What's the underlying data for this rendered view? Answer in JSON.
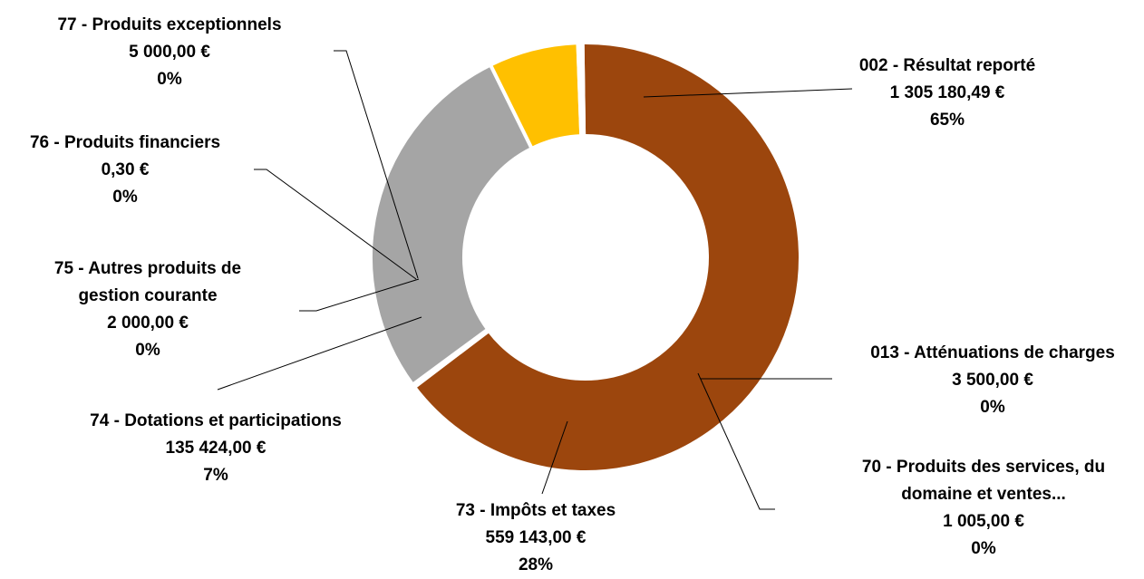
{
  "chart_data": {
    "type": "pie",
    "variant": "donut",
    "legend": "none",
    "slices": [
      {
        "name": "002 - Résultat reporté",
        "value": 1305180.49,
        "value_label": "1 305 180,49 €",
        "percent_label": "65%",
        "color": "#9C460D"
      },
      {
        "name": "013 - Atténuations de charges",
        "value": 3500.0,
        "value_label": "3 500,00 €",
        "percent_label": "0%",
        "color": "#9C460D"
      },
      {
        "name": "70 - Produits des services, du domaine et ventes...",
        "value": 1005.0,
        "value_label": "1 005,00 €",
        "percent_label": "0%",
        "color": "#A5A5A5"
      },
      {
        "name": "73 - Impôts et taxes",
        "value": 559143.0,
        "value_label": "559 143,00 €",
        "percent_label": "28%",
        "color": "#A5A5A5"
      },
      {
        "name": "74 - Dotations et participations",
        "value": 135424.0,
        "value_label": "135 424,00 €",
        "percent_label": "7%",
        "color": "#FFC000"
      },
      {
        "name": "75 - Autres produits de gestion courante",
        "value": 2000.0,
        "value_label": "2 000,00 €",
        "percent_label": "0%",
        "color": "#FFC000"
      },
      {
        "name": "76 - Produits financiers",
        "value": 0.3,
        "value_label": "0,30 €",
        "percent_label": "0%",
        "color": "#4472C4"
      },
      {
        "name": "77 - Produits exceptionnels",
        "value": 5000.0,
        "value_label": "5 000,00 €",
        "percent_label": "0%",
        "color": "#9C460D"
      }
    ]
  }
}
